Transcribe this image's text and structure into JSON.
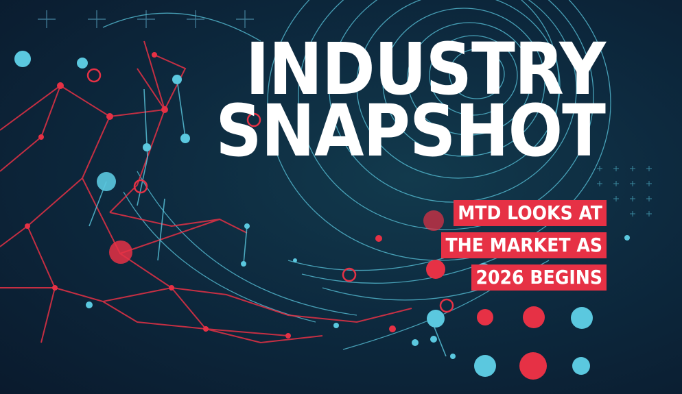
{
  "hero": {
    "title_line1": "INDUSTRY",
    "title_line2": "SNAPSHOT",
    "subtitle_lines": [
      "MTD LOOKS AT",
      "THE MARKET AS",
      "2026 BEGINS"
    ]
  },
  "colors": {
    "background": "#0b1b2e",
    "accent_red": "#e63145",
    "accent_cyan": "#5bc8df",
    "title_white": "#ffffff"
  }
}
